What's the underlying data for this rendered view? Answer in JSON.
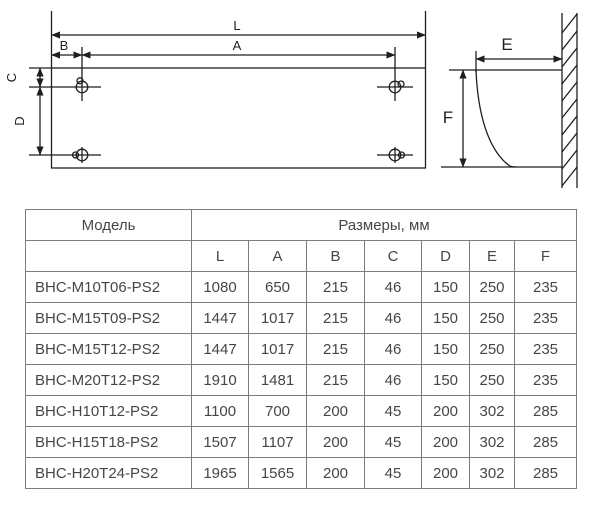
{
  "diagram": {
    "front_view": {
      "length_label": "L",
      "hole_span_label": "A",
      "edge_offset_label": "B",
      "top_offset_label": "C",
      "vertical_span_label": "D"
    },
    "side_view": {
      "depth_label": "E",
      "height_label": "F"
    }
  },
  "table": {
    "model_header": "Модель",
    "dimensions_header": "Размеры, мм",
    "columns": [
      "L",
      "A",
      "B",
      "C",
      "D",
      "E",
      "F"
    ],
    "rows": [
      {
        "model": "BHC-M10T06-PS2",
        "values": [
          "1080",
          "650",
          "215",
          "46",
          "150",
          "250",
          "235"
        ]
      },
      {
        "model": "BHC-M15T09-PS2",
        "values": [
          "1447",
          "1017",
          "215",
          "46",
          "150",
          "250",
          "235"
        ]
      },
      {
        "model": "BHC-M15T12-PS2",
        "values": [
          "1447",
          "1017",
          "215",
          "46",
          "150",
          "250",
          "235"
        ]
      },
      {
        "model": "BHC-M20T12-PS2",
        "values": [
          "1910",
          "1481",
          "215",
          "46",
          "150",
          "250",
          "235"
        ]
      },
      {
        "model": "BHC-H10T12-PS2",
        "values": [
          "1100",
          "700",
          "200",
          "45",
          "200",
          "302",
          "285"
        ]
      },
      {
        "model": "BHC-H15T18-PS2",
        "values": [
          "1507",
          "1107",
          "200",
          "45",
          "200",
          "302",
          "285"
        ]
      },
      {
        "model": "BHC-H20T24-PS2",
        "values": [
          "1965",
          "1565",
          "200",
          "45",
          "200",
          "302",
          "285"
        ]
      }
    ]
  },
  "colors": {
    "drawing_line": "#1f1f1f",
    "table_border": "#7d7d7d",
    "table_text": "#464646"
  }
}
